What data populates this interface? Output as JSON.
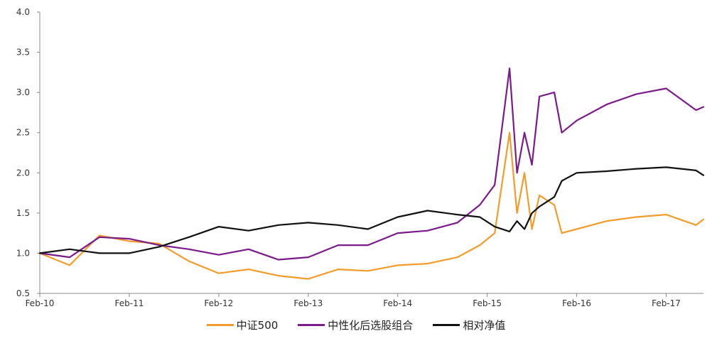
{
  "chart_data": {
    "type": "line",
    "title": "",
    "xlabel": "",
    "ylabel": "",
    "ylim": [
      0.5,
      4.0
    ],
    "y_ticks": [
      "0.5",
      "1.0",
      "1.5",
      "2.0",
      "2.5",
      "3.0",
      "3.5",
      "4.0"
    ],
    "x_ticks": [
      "Feb-10",
      "Feb-11",
      "Feb-12",
      "Feb-13",
      "Feb-14",
      "Feb-15",
      "Feb-16",
      "Feb-17"
    ],
    "x_range": [
      "2010-02",
      "2017-07"
    ],
    "grid": false,
    "legend_position": "bottom",
    "x": [
      "2010-02",
      "2010-06",
      "2010-10",
      "2011-02",
      "2011-06",
      "2011-10",
      "2012-02",
      "2012-06",
      "2012-10",
      "2013-02",
      "2013-06",
      "2013-10",
      "2014-02",
      "2014-06",
      "2014-10",
      "2015-01",
      "2015-03",
      "2015-05",
      "2015-06",
      "2015-07",
      "2015-08",
      "2015-09",
      "2015-11",
      "2015-12",
      "2016-02",
      "2016-06",
      "2016-10",
      "2017-02",
      "2017-06",
      "2017-07"
    ],
    "series": [
      {
        "name": "中证500",
        "color": "#f39c2b",
        "values": [
          1.0,
          0.85,
          1.22,
          1.15,
          1.12,
          0.9,
          0.75,
          0.8,
          0.72,
          0.68,
          0.8,
          0.78,
          0.85,
          0.87,
          0.95,
          1.1,
          1.25,
          2.5,
          1.5,
          2.0,
          1.3,
          1.72,
          1.6,
          1.25,
          1.3,
          1.4,
          1.45,
          1.48,
          1.35,
          1.42
        ]
      },
      {
        "name": "中性化后选股组合",
        "color": "#7b1a8a",
        "values": [
          1.0,
          0.95,
          1.2,
          1.18,
          1.1,
          1.05,
          0.98,
          1.05,
          0.92,
          0.95,
          1.1,
          1.1,
          1.25,
          1.28,
          1.38,
          1.6,
          1.85,
          3.3,
          2.0,
          2.5,
          2.1,
          2.95,
          3.0,
          2.5,
          2.65,
          2.85,
          2.98,
          3.05,
          2.78,
          2.82
        ]
      },
      {
        "name": "相对净值",
        "color": "#111111",
        "values": [
          1.0,
          1.05,
          1.0,
          1.0,
          1.08,
          1.2,
          1.33,
          1.28,
          1.35,
          1.38,
          1.35,
          1.3,
          1.45,
          1.53,
          1.48,
          1.45,
          1.33,
          1.27,
          1.4,
          1.3,
          1.5,
          1.58,
          1.7,
          1.9,
          2.0,
          2.02,
          2.05,
          2.07,
          2.03,
          1.97
        ]
      }
    ]
  }
}
